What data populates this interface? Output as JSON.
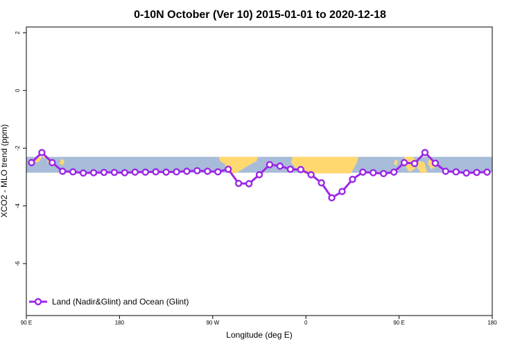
{
  "chart_data": {
    "type": "line",
    "title": "0-10N October (Ver 10)   2015-01-01 to 2020-12-18",
    "xlabel": "Longitude (deg E)",
    "ylabel": "XCO2 - MLO trend (ppm)",
    "xlim": [
      90,
      540
    ],
    "ylim": [
      -7.8,
      2.2
    ],
    "x_ticks": [
      {
        "value": 90,
        "label": "90 E"
      },
      {
        "value": 180,
        "label": "180"
      },
      {
        "value": 270,
        "label": "90 W"
      },
      {
        "value": 360,
        "label": "0"
      },
      {
        "value": 450,
        "label": "90 E"
      },
      {
        "value": 540,
        "label": "180"
      }
    ],
    "y_ticks": [
      {
        "value": 2,
        "label": "2"
      },
      {
        "value": 0,
        "label": "0"
      },
      {
        "value": -2,
        "label": "-2"
      },
      {
        "value": -4,
        "label": "-4"
      },
      {
        "value": -6,
        "label": "-6"
      }
    ],
    "map_strip": {
      "y_bottom": -2.85,
      "y_top": -2.3,
      "ocean_color": "#a8bcd9",
      "land_color": "#ffd970"
    },
    "series": [
      {
        "name": "Land (Nadir&Glint) and Ocean (Glint)",
        "color": "#9b26e6",
        "x": [
          95,
          105,
          115,
          125,
          135,
          145,
          155,
          165,
          175,
          185,
          195,
          205,
          215,
          225,
          235,
          245,
          255,
          265,
          275,
          285,
          295,
          305,
          315,
          325,
          335,
          345,
          355,
          365,
          375,
          385,
          395,
          405,
          415,
          425,
          435,
          445,
          455,
          465,
          475,
          485,
          495,
          505,
          515,
          525,
          535
        ],
        "y": [
          -2.5,
          -2.15,
          -2.5,
          -2.8,
          -2.82,
          -2.86,
          -2.85,
          -2.84,
          -2.84,
          -2.85,
          -2.83,
          -2.83,
          -2.82,
          -2.83,
          -2.82,
          -2.8,
          -2.78,
          -2.8,
          -2.82,
          -2.73,
          -3.22,
          -3.23,
          -2.92,
          -2.57,
          -2.62,
          -2.73,
          -2.74,
          -2.92,
          -3.2,
          -3.72,
          -3.5,
          -3.08,
          -2.83,
          -2.85,
          -2.88,
          -2.83,
          -2.5,
          -2.53,
          -2.15,
          -2.52,
          -2.8,
          -2.82,
          -2.86,
          -2.84,
          -2.83
        ]
      }
    ],
    "legend": {
      "position": "bottom-left",
      "label": "Land (Nadir&Glint) and Ocean (Glint)"
    },
    "grid": false
  }
}
